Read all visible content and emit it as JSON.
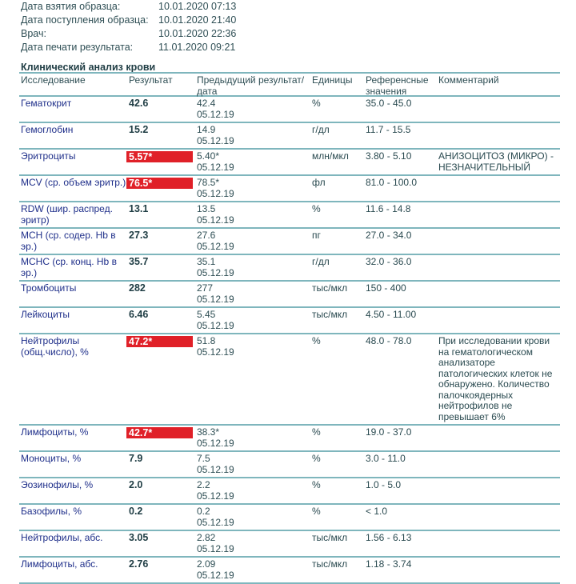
{
  "meta": [
    {
      "label": "Дата взятия образца:",
      "value": "10.01.2020 07:13"
    },
    {
      "label": "Дата поступления образца:",
      "value": "10.01.2020 21:40"
    },
    {
      "label": "Врач:",
      "value": "10.01.2020 22:36"
    },
    {
      "label": "Дата печати результата:",
      "value": "11.01.2020 09:21"
    }
  ],
  "section_title": "Клинический анализ крови",
  "headers": {
    "test": "Исследование",
    "result": "Результат",
    "previous": "Предыдущий результат/дата",
    "units": "Единицы",
    "reference": "Референсные значения",
    "comment": "Комментарий"
  },
  "flag_color": "#e02028",
  "rows": [
    {
      "name": "Гематокрит",
      "result": "42.6",
      "flag": false,
      "prev": "42.4",
      "prev_date": "05.12.19",
      "units": "%",
      "ref": "35.0 - 45.0",
      "comment": ""
    },
    {
      "name": "Гемоглобин",
      "result": "15.2",
      "flag": false,
      "prev": "14.9",
      "prev_date": "05.12.19",
      "units": "г/дл",
      "ref": "11.7 - 15.5",
      "comment": ""
    },
    {
      "name": "Эритроциты",
      "result": "5.57*",
      "flag": true,
      "prev": "5.40*",
      "prev_date": "05.12.19",
      "units": "млн/мкл",
      "ref": "3.80 - 5.10",
      "comment": "АНИЗОЦИТОЗ (МИКРО) - НЕЗНАЧИТЕЛЬНЫЙ"
    },
    {
      "name": "MCV (ср. объем эритр.)",
      "result": "76.5*",
      "flag": true,
      "prev": "78.5*",
      "prev_date": "05.12.19",
      "units": "фл",
      "ref": "81.0 - 100.0",
      "comment": ""
    },
    {
      "name": "RDW (шир. распред. эритр)",
      "result": "13.1",
      "flag": false,
      "prev": "13.5",
      "prev_date": "05.12.19",
      "units": "%",
      "ref": "11.6 - 14.8",
      "comment": ""
    },
    {
      "name": "MCH (ср. содер. Hb в эр.)",
      "result": "27.3",
      "flag": false,
      "prev": "27.6",
      "prev_date": "05.12.19",
      "units": "пг",
      "ref": "27.0 - 34.0",
      "comment": ""
    },
    {
      "name": "MCHC (ср. конц. Hb в эр.)",
      "result": "35.7",
      "flag": false,
      "prev": "35.1",
      "prev_date": "05.12.19",
      "units": "г/дл",
      "ref": "32.0 - 36.0",
      "comment": ""
    },
    {
      "name": "Тромбоциты",
      "result": "282",
      "flag": false,
      "prev": "277",
      "prev_date": "05.12.19",
      "units": "тыс/мкл",
      "ref": "150 - 400",
      "comment": ""
    },
    {
      "name": "Лейкоциты",
      "result": "6.46",
      "flag": false,
      "prev": "5.45",
      "prev_date": "05.12.19",
      "units": "тыс/мкл",
      "ref": "4.50 - 11.00",
      "comment": ""
    },
    {
      "name": "Нейтрофилы (общ.число), %",
      "result": "47.2*",
      "flag": true,
      "prev": "51.8",
      "prev_date": "05.12.19",
      "units": "%",
      "ref": "48.0 - 78.0",
      "comment": "При исследовании крови на гематологическом анализаторе патологических клеток не обнаружено. Количество палочкоядерных нейтрофилов не превышает 6%"
    },
    {
      "name": "Лимфоциты, %",
      "result": "42.7*",
      "flag": true,
      "prev": "38.3*",
      "prev_date": "05.12.19",
      "units": "%",
      "ref": "19.0 - 37.0",
      "comment": ""
    },
    {
      "name": "Моноциты, %",
      "result": "7.9",
      "flag": false,
      "prev": "7.5",
      "prev_date": "05.12.19",
      "units": "%",
      "ref": "3.0 - 11.0",
      "comment": ""
    },
    {
      "name": "Эозинофилы, %",
      "result": "2.0",
      "flag": false,
      "prev": "2.2",
      "prev_date": "05.12.19",
      "units": "%",
      "ref": "1.0 - 5.0",
      "comment": ""
    },
    {
      "name": "Базофилы, %",
      "result": "0.2",
      "flag": false,
      "prev": "0.2",
      "prev_date": "05.12.19",
      "units": "%",
      "ref": "< 1.0",
      "comment": ""
    },
    {
      "name": "Нейтрофилы, абс.",
      "result": "3.05",
      "flag": false,
      "prev": "2.82",
      "prev_date": "05.12.19",
      "units": "тыс/мкл",
      "ref": "1.56 - 6.13",
      "comment": ""
    },
    {
      "name": "Лимфоциты, абс.",
      "result": "2.76",
      "flag": false,
      "prev": "2.09",
      "prev_date": "05.12.19",
      "units": "тыс/мкл",
      "ref": "1.18 - 3.74",
      "comment": ""
    }
  ]
}
